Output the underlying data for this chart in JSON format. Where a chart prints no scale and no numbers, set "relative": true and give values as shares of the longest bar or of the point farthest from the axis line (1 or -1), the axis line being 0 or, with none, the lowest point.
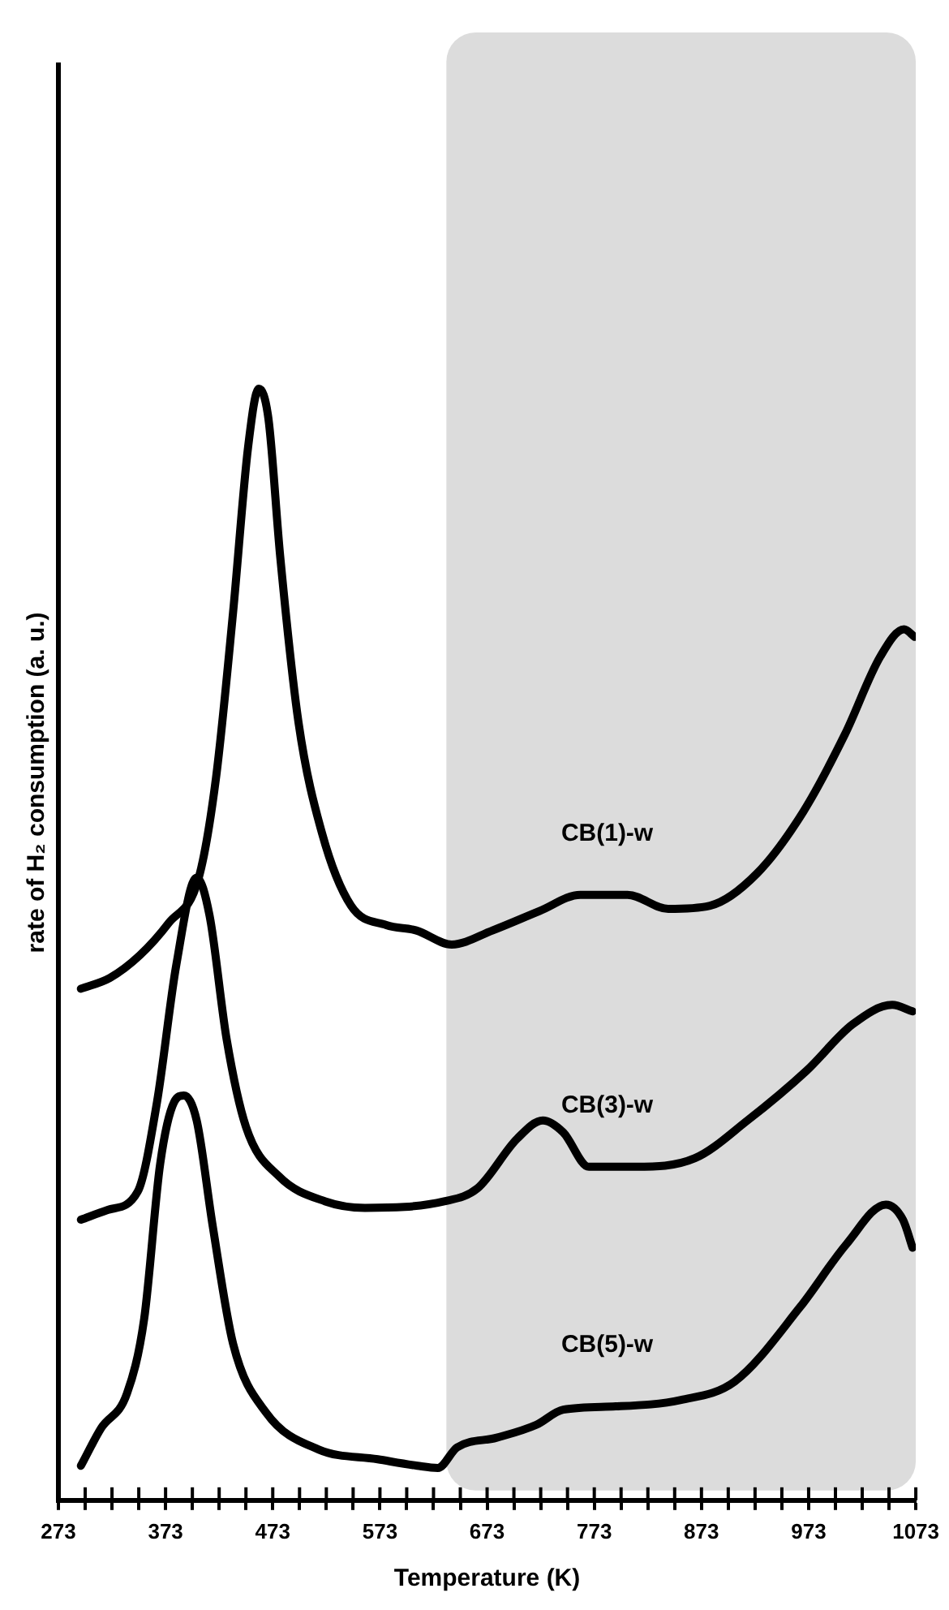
{
  "chart_data": {
    "type": "line",
    "relative": true,
    "xlabel": "Temperature (K)",
    "ylabel": "rate of H₂ consumption (a. u.)",
    "xlim": [
      273,
      1073
    ],
    "xticks": [
      273,
      {
        "value": 298,
        "label": null
      },
      {
        "value": 323,
        "label": null
      },
      {
        "value": 348,
        "label": null
      },
      373,
      {
        "value": 398,
        "label": null
      },
      {
        "value": 423,
        "label": null
      },
      {
        "value": 448,
        "label": null
      },
      473,
      {
        "value": 498,
        "label": null
      },
      {
        "value": 523,
        "label": null
      },
      {
        "value": 548,
        "label": null
      },
      573,
      {
        "value": 598,
        "label": null
      },
      {
        "value": 623,
        "label": null
      },
      {
        "value": 648,
        "label": null
      },
      673,
      {
        "value": 698,
        "label": null
      },
      {
        "value": 723,
        "label": null
      },
      {
        "value": 748,
        "label": null
      },
      773,
      {
        "value": 798,
        "label": null
      },
      {
        "value": 823,
        "label": null
      },
      {
        "value": 848,
        "label": null
      },
      873,
      {
        "value": 898,
        "label": null
      },
      {
        "value": 923,
        "label": null
      },
      {
        "value": 948,
        "label": null
      },
      973,
      {
        "value": 998,
        "label": null
      },
      {
        "value": 1023,
        "label": null
      },
      {
        "value": 1048,
        "label": null
      },
      1073
    ],
    "grid": false,
    "legend": false,
    "marker": "none",
    "line_style": "solid",
    "bands": [
      {
        "axis": "x",
        "from": 635,
        "to": 1073,
        "color": "#dcdcdc"
      }
    ],
    "series": [
      {
        "name": "CB(1)-w",
        "color": "#000000",
        "x": [
          294,
          321,
          349,
          376,
          404,
          420,
          436,
          450,
          460,
          469,
          480,
          497,
          519,
          546,
          579,
          607,
          640,
          678,
          722,
          760,
          804,
          842,
          881,
          925,
          968,
          1007,
          1040,
          1062,
          1072
        ],
        "values": [
          0.444,
          0.454,
          0.475,
          0.505,
          0.547,
          0.639,
          0.793,
          0.946,
          1,
          0.972,
          0.844,
          0.691,
          0.588,
          0.521,
          0.503,
          0.498,
          0.485,
          0.498,
          0.516,
          0.531,
          0.531,
          0.518,
          0.521,
          0.551,
          0.608,
          0.68,
          0.752,
          0.777,
          0.77
        ]
      },
      {
        "name": "CB(3)-w",
        "color": "#000000",
        "x": [
          294,
          319,
          347,
          365,
          383,
          402,
          414,
          430,
          448,
          479,
          522,
          559,
          633,
          664,
          701,
          725,
          744,
          768,
          811,
          867,
          916,
          971,
          1014,
          1051,
          1070
        ],
        "values": [
          0.23,
          0.239,
          0.256,
          0.339,
          0.466,
          0.547,
          0.512,
          0.397,
          0.316,
          0.27,
          0.247,
          0.241,
          0.247,
          0.259,
          0.305,
          0.322,
          0.311,
          0.279,
          0.279,
          0.287,
          0.322,
          0.368,
          0.411,
          0.429,
          0.423
        ]
      },
      {
        "name": "CB(5)-w",
        "color": "#000000",
        "x": [
          294,
          313,
          337,
          353,
          368,
          381,
          390,
          402,
          417,
          436,
          467,
          516,
          571,
          608,
          627,
          645,
          682,
          719,
          744,
          793,
          854,
          904,
          965,
          1008,
          1045,
          1061,
          1070
        ],
        "values": [
          0.002,
          0.037,
          0.069,
          0.138,
          0.282,
          0.339,
          0.345,
          0.322,
          0.224,
          0.115,
          0.051,
          0.017,
          0.008,
          0.002,
          0,
          0.019,
          0.028,
          0.04,
          0.054,
          0.057,
          0.063,
          0.08,
          0.149,
          0.207,
          0.244,
          0.23,
          0.204
        ]
      }
    ]
  }
}
